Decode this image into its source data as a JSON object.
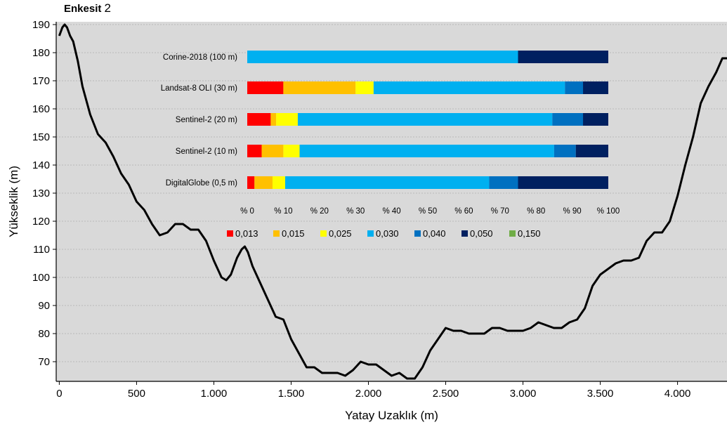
{
  "title_prefix": "Enkesit",
  "title_number": "2",
  "colors": {
    "plot_bg": "#d9d9d9",
    "grid": "#9a9a9a",
    "profile": "#000000",
    "classes": [
      "#ff0000",
      "#ffc000",
      "#ffff00",
      "#00b0f0",
      "#0070c0",
      "#002060",
      "#70ad47"
    ]
  },
  "chart_data": [
    {
      "type": "line",
      "xlabel": "Yatay Uzaklık (m)",
      "ylabel": "Yükseklik (m)",
      "xlim": [
        -20,
        4320
      ],
      "ylim": [
        63,
        191
      ],
      "x_ticks": [
        0,
        500,
        1000,
        1500,
        2000,
        2500,
        3000,
        3500,
        4000
      ],
      "x_tick_labels": [
        "0",
        "500",
        "1.000",
        "1.500",
        "2.000",
        "2.500",
        "3.000",
        "3.500",
        "4.000"
      ],
      "y_ticks": [
        70,
        80,
        90,
        100,
        110,
        120,
        130,
        140,
        150,
        160,
        170,
        180,
        190
      ],
      "y_tick_labels": [
        "70",
        "80",
        "90",
        "100",
        "110",
        "120",
        "130",
        "140",
        "150",
        "160",
        "170",
        "180",
        "190"
      ],
      "grid": true,
      "series": [
        {
          "x": [
            0,
            20,
            35,
            50,
            70,
            90,
            120,
            150,
            200,
            250,
            300,
            350,
            400,
            450,
            500,
            550,
            600,
            650,
            700,
            750,
            800,
            850,
            900,
            950,
            1000,
            1050,
            1080,
            1110,
            1150,
            1180,
            1200,
            1220,
            1250,
            1300,
            1350,
            1400,
            1450,
            1500,
            1550,
            1600,
            1650,
            1700,
            1750,
            1800,
            1850,
            1900,
            1950,
            2000,
            2050,
            2100,
            2150,
            2200,
            2250,
            2300,
            2350,
            2400,
            2450,
            2500,
            2550,
            2600,
            2650,
            2700,
            2750,
            2800,
            2850,
            2900,
            2950,
            3000,
            3050,
            3100,
            3150,
            3200,
            3250,
            3300,
            3350,
            3400,
            3450,
            3500,
            3550,
            3600,
            3650,
            3700,
            3750,
            3800,
            3850,
            3900,
            3950,
            4000,
            4050,
            4100,
            4150,
            4200,
            4250,
            4290,
            4320
          ],
          "y": [
            186,
            189,
            190,
            189,
            186,
            184,
            177,
            168,
            158,
            151,
            148,
            143,
            137,
            133,
            127,
            124,
            119,
            115,
            116,
            119,
            119,
            117,
            117,
            113,
            106,
            100,
            99,
            101,
            107,
            110,
            111,
            109,
            104,
            98,
            92,
            86,
            85,
            78,
            73,
            68,
            68,
            66,
            66,
            66,
            65,
            67,
            70,
            69,
            69,
            67,
            65,
            66,
            64,
            64,
            68,
            74,
            78,
            82,
            81,
            81,
            80,
            80,
            80,
            82,
            82,
            81,
            81,
            81,
            82,
            84,
            83,
            82,
            82,
            84,
            85,
            89,
            97,
            101,
            103,
            105,
            106,
            106,
            107,
            113,
            116,
            116,
            120,
            129,
            140,
            150,
            162,
            168,
            173,
            178,
            178
          ]
        }
      ]
    },
    {
      "type": "bar",
      "orientation": "horizontal",
      "stacked": true,
      "categories": [
        "Corine-2018 (100 m)",
        "Landsat-8 OLI (30 m)",
        "Sentinel-2 (20 m)",
        "Sentinel-2 (10 m)",
        "DigitalGlobe (0,5 m)"
      ],
      "x_tick_labels": [
        "% 0",
        "% 10",
        "% 20",
        "% 30",
        "% 40",
        "% 50",
        "% 60",
        "% 70",
        "% 80",
        "% 90",
        "% 100"
      ],
      "xlim": [
        0,
        100
      ],
      "legend_position": "bottom",
      "series": [
        {
          "name": "0,013",
          "values": [
            0,
            10,
            6.5,
            4,
            2
          ]
        },
        {
          "name": "0,015",
          "values": [
            0,
            20,
            1.5,
            6,
            5
          ]
        },
        {
          "name": "0,025",
          "values": [
            0,
            5,
            6,
            4.5,
            3.5
          ]
        },
        {
          "name": "0,030",
          "values": [
            75,
            53,
            70.5,
            70.5,
            56.5
          ]
        },
        {
          "name": "0,040",
          "values": [
            0,
            5,
            8.5,
            6,
            8
          ]
        },
        {
          "name": "0,050",
          "values": [
            25,
            7,
            7,
            9,
            25
          ]
        },
        {
          "name": "0,150",
          "values": [
            0,
            0,
            0,
            0,
            0
          ]
        }
      ]
    }
  ]
}
